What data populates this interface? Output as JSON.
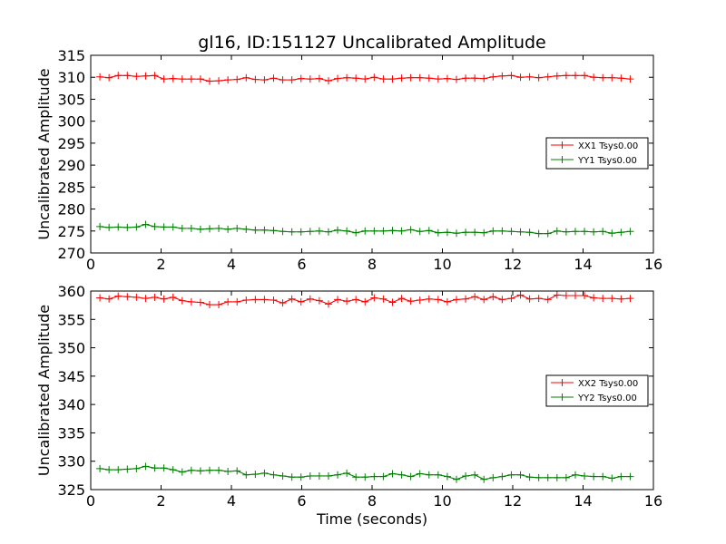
{
  "chart_data": [
    {
      "type": "line",
      "title": "gl16, ID:151127 Uncalibrated Amplitude",
      "xlabel": "",
      "ylabel": "Uncalibrated Amplitude",
      "xlim": [
        0,
        16
      ],
      "ylim": [
        270,
        315
      ],
      "xticks": [
        "0",
        "2",
        "4",
        "6",
        "8",
        "10",
        "12",
        "14",
        "16"
      ],
      "yticks": [
        "270",
        "275",
        "280",
        "285",
        "290",
        "295",
        "300",
        "305",
        "310",
        "315"
      ],
      "legend_position": "center-right",
      "x": [
        0.26,
        0.52,
        0.78,
        1.04,
        1.3,
        1.56,
        1.82,
        2.08,
        2.34,
        2.6,
        2.86,
        3.12,
        3.38,
        3.64,
        3.9,
        4.16,
        4.42,
        4.68,
        4.94,
        5.2,
        5.46,
        5.72,
        5.98,
        6.24,
        6.5,
        6.76,
        7.02,
        7.28,
        7.54,
        7.8,
        8.06,
        8.32,
        8.58,
        8.84,
        9.1,
        9.36,
        9.62,
        9.88,
        10.14,
        10.4,
        10.66,
        10.92,
        11.18,
        11.44,
        11.7,
        11.96,
        12.22,
        12.48,
        12.74,
        13.0,
        13.26,
        13.52,
        13.78,
        14.04,
        14.3,
        14.56,
        14.82,
        15.08,
        15.34
      ],
      "series": [
        {
          "name": "XX1 Tsys0.00",
          "color": "#ff0000",
          "values": [
            310.1,
            309.9,
            310.4,
            310.4,
            310.2,
            310.3,
            310.4,
            309.6,
            309.7,
            309.6,
            309.6,
            309.6,
            309.1,
            309.2,
            309.4,
            309.5,
            309.9,
            309.5,
            309.4,
            309.8,
            309.4,
            309.4,
            309.7,
            309.6,
            309.7,
            309.2,
            309.7,
            309.9,
            309.8,
            309.6,
            310.0,
            309.6,
            309.6,
            309.8,
            309.9,
            309.9,
            309.8,
            309.6,
            309.7,
            309.5,
            309.8,
            309.8,
            309.7,
            310.1,
            310.3,
            310.4,
            310.0,
            310.1,
            309.9,
            310.1,
            310.3,
            310.4,
            310.4,
            310.4,
            310.0,
            309.9,
            309.9,
            309.8,
            309.6
          ]
        },
        {
          "name": "YY1 Tsys0.00",
          "color": "#008000",
          "values": [
            276.0,
            275.8,
            275.9,
            275.8,
            275.9,
            276.5,
            276.0,
            275.9,
            275.9,
            275.6,
            275.6,
            275.4,
            275.5,
            275.6,
            275.4,
            275.6,
            275.4,
            275.2,
            275.2,
            275.1,
            274.9,
            274.8,
            274.8,
            274.9,
            275.0,
            274.8,
            275.2,
            275.0,
            274.6,
            275.0,
            275.0,
            275.0,
            275.1,
            275.0,
            275.3,
            274.9,
            275.1,
            274.6,
            274.7,
            274.5,
            274.7,
            274.7,
            274.6,
            275.0,
            275.0,
            274.9,
            274.8,
            274.7,
            274.4,
            274.4,
            275.0,
            274.8,
            274.9,
            274.9,
            274.8,
            274.9,
            274.5,
            274.7,
            274.9
          ]
        }
      ]
    },
    {
      "type": "line",
      "title": "",
      "xlabel": "Time (seconds)",
      "ylabel": "Uncalibrated Amplitude",
      "xlim": [
        0,
        16
      ],
      "ylim": [
        325,
        360
      ],
      "xticks": [
        "0",
        "2",
        "4",
        "6",
        "8",
        "10",
        "12",
        "14",
        "16"
      ],
      "yticks": [
        "325",
        "330",
        "335",
        "340",
        "345",
        "350",
        "355",
        "360"
      ],
      "legend_position": "center-right",
      "x": [
        0.26,
        0.52,
        0.78,
        1.04,
        1.3,
        1.56,
        1.82,
        2.08,
        2.34,
        2.6,
        2.86,
        3.12,
        3.38,
        3.64,
        3.9,
        4.16,
        4.42,
        4.68,
        4.94,
        5.2,
        5.46,
        5.72,
        5.98,
        6.24,
        6.5,
        6.76,
        7.02,
        7.28,
        7.54,
        7.8,
        8.06,
        8.32,
        8.58,
        8.84,
        9.1,
        9.36,
        9.62,
        9.88,
        10.14,
        10.4,
        10.66,
        10.92,
        11.18,
        11.44,
        11.7,
        11.96,
        12.22,
        12.48,
        12.74,
        13.0,
        13.26,
        13.52,
        13.78,
        14.04,
        14.3,
        14.56,
        14.82,
        15.08,
        15.34
      ],
      "series": [
        {
          "name": "XX2 Tsys0.00",
          "color": "#ff0000",
          "values": [
            358.8,
            358.6,
            359.1,
            359.0,
            358.9,
            358.7,
            358.9,
            358.6,
            358.9,
            358.3,
            358.1,
            358.0,
            357.6,
            357.6,
            358.1,
            358.1,
            358.4,
            358.5,
            358.5,
            358.4,
            357.9,
            358.6,
            358.1,
            358.6,
            358.3,
            357.7,
            358.5,
            358.2,
            358.5,
            358.1,
            358.8,
            358.6,
            358.0,
            358.7,
            358.2,
            358.4,
            358.6,
            358.5,
            358.1,
            358.5,
            358.6,
            359.0,
            358.5,
            359.0,
            358.5,
            358.7,
            359.3,
            358.6,
            358.7,
            358.5,
            359.3,
            359.2,
            359.2,
            359.2,
            358.8,
            358.7,
            358.7,
            358.6,
            358.7
          ]
        },
        {
          "name": "YY2 Tsys0.00",
          "color": "#008000",
          "values": [
            328.7,
            328.5,
            328.5,
            328.6,
            328.7,
            329.1,
            328.8,
            328.8,
            328.5,
            328.1,
            328.4,
            328.3,
            328.4,
            328.4,
            328.2,
            328.3,
            327.6,
            327.7,
            327.9,
            327.6,
            327.4,
            327.2,
            327.2,
            327.4,
            327.4,
            327.4,
            327.6,
            327.9,
            327.2,
            327.2,
            327.3,
            327.3,
            327.8,
            327.6,
            327.3,
            327.8,
            327.6,
            327.6,
            327.3,
            326.8,
            327.4,
            327.6,
            326.8,
            327.1,
            327.3,
            327.6,
            327.6,
            327.2,
            327.1,
            327.1,
            327.1,
            327.1,
            327.6,
            327.4,
            327.3,
            327.3,
            327.0,
            327.3,
            327.3
          ]
        }
      ]
    }
  ]
}
